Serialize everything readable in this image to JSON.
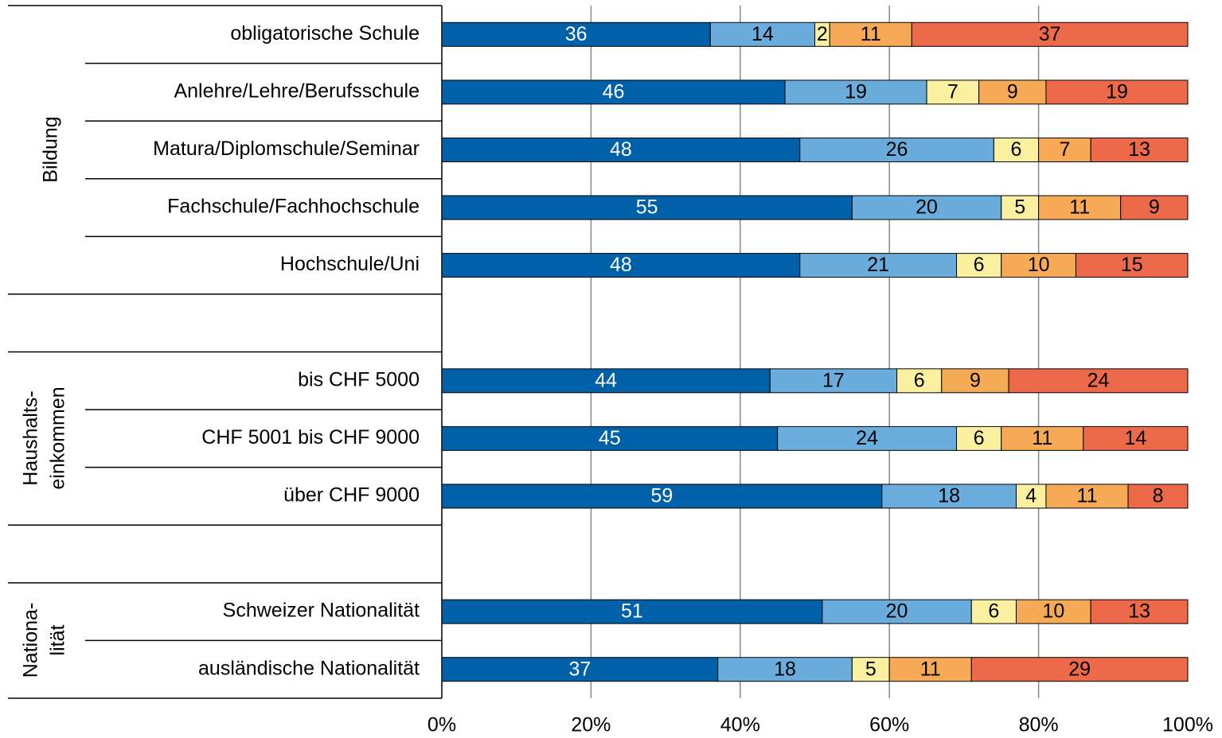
{
  "chart_data": {
    "type": "stacked_barh",
    "categories": [
      "obligatorische Schule",
      "Anlehre/Lehre/Berufsschule",
      "Matura/Diplomschule/Seminar",
      "Fachschule/Fachhochschule",
      "Hochschule/Uni",
      null,
      "bis CHF 5000",
      "CHF 5001 bis CHF 9000",
      "über CHF 9000",
      null,
      "Schweizer Nationalität",
      "ausländische Nationalität"
    ],
    "groups": [
      {
        "label": [
          "Bildung"
        ]
      },
      {
        "label": [
          "Haushalts-",
          "einkommen"
        ]
      },
      {
        "label": [
          "Nationa-",
          "lität"
        ]
      }
    ],
    "series": [
      {
        "color": "#0060a8",
        "label_color": "#ffffff",
        "values": [
          36,
          46,
          48,
          55,
          48,
          null,
          44,
          45,
          59,
          null,
          51,
          37
        ]
      },
      {
        "color": "#6aaddc",
        "label_color": "#000000",
        "values": [
          14,
          19,
          26,
          20,
          21,
          null,
          17,
          24,
          18,
          null,
          20,
          18
        ]
      },
      {
        "color": "#faf0a0",
        "label_color": "#000000",
        "values": [
          2,
          7,
          6,
          5,
          6,
          null,
          6,
          6,
          4,
          null,
          6,
          5
        ]
      },
      {
        "color": "#f6aa55",
        "label_color": "#000000",
        "values": [
          11,
          9,
          7,
          11,
          10,
          null,
          9,
          11,
          11,
          null,
          10,
          11
        ]
      },
      {
        "color": "#ec6a4a",
        "label_color": "#000000",
        "values": [
          37,
          19,
          13,
          9,
          15,
          null,
          24,
          14,
          8,
          null,
          13,
          29
        ]
      }
    ],
    "xlim": [
      0,
      100
    ],
    "xticks": [
      {
        "value": 0,
        "label": "0%"
      },
      {
        "value": 20,
        "label": "20%"
      },
      {
        "value": 40,
        "label": "40%"
      },
      {
        "value": 60,
        "label": "60%"
      },
      {
        "value": 80,
        "label": "80%"
      },
      {
        "value": 100,
        "label": "100%"
      }
    ],
    "grid": true
  }
}
